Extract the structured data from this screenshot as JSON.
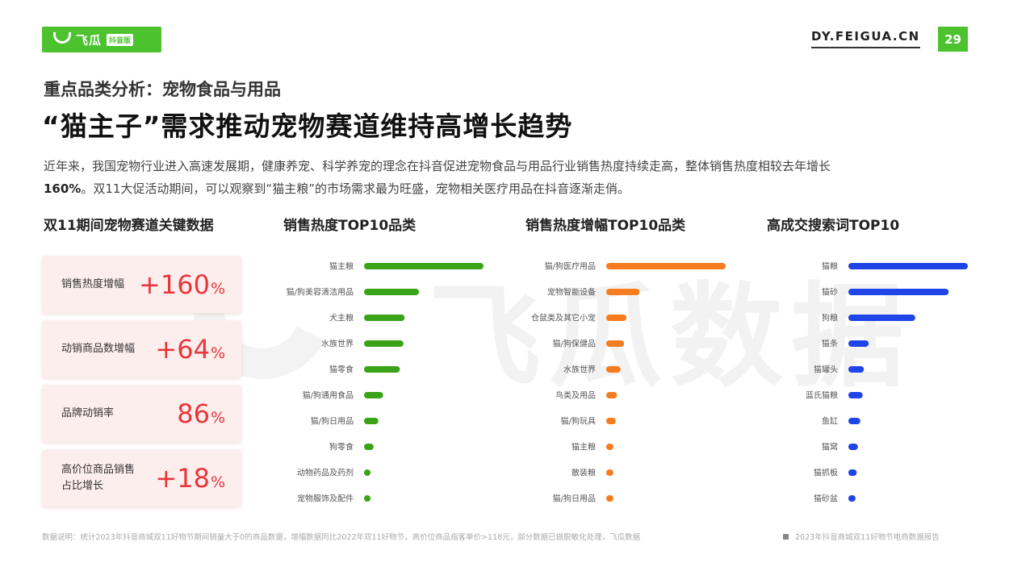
{
  "header": {
    "logo_text": "飞瓜",
    "logo_badge": "抖音版",
    "site_url": "DY.FEIGUA.CN",
    "page_number": "29",
    "brand_color": "#4dc22f"
  },
  "subtitle": "重点品类分析：宠物食品与用品",
  "title": "“猫主子”需求推动宠物赛道维持高增长趋势",
  "description": {
    "line1": "近年来，我国宠物行业进入高速发展期，健康养宠、科学养宠的理念在抖音促进宠物食品与用品行业销售热度持续走高，整体销售热度相较去年增长",
    "line2_bold": "160%",
    "line2_rest": "。双11大促活动期间，可以观察到“猫主粮”的市场需求最为旺盛，宠物相关医疗用品在抖音逐渐走俏。"
  },
  "watermark": "飞瓜数据",
  "kpi_section": {
    "heading": "双11期间宠物赛道关键数据",
    "value_color": "#e8363b",
    "items": [
      {
        "label": "销售热度增幅",
        "value": "+160",
        "unit": "%"
      },
      {
        "label": "动销商品数增幅",
        "value": "+64",
        "unit": "%"
      },
      {
        "label": "品牌动销率",
        "value": "86",
        "unit": "%"
      },
      {
        "label": "高价位商品销售占比增长",
        "value": "+18",
        "unit": "%"
      }
    ]
  },
  "chart_data": [
    {
      "type": "bar",
      "orientation": "horizontal",
      "title": "销售热度TOP10品类",
      "color": "#3aa317",
      "categories": [
        "猫主粮",
        "猫/狗美容清洁用品",
        "犬主粮",
        "水族世界",
        "猫零食",
        "猫/狗通用食品",
        "猫/狗日用品",
        "狗零食",
        "动物药品及药剂",
        "宠物服饰及配件"
      ],
      "values": [
        100,
        46,
        34,
        33,
        30,
        16,
        12,
        8,
        5,
        4
      ]
    },
    {
      "type": "bar",
      "orientation": "horizontal",
      "title": "销售热度增幅TOP10品类",
      "color": "#f57d1f",
      "categories": [
        "猫/狗医疗用品",
        "宠物智能设备",
        "仓鼠类及其它小宠",
        "猫/狗保健品",
        "水族世界",
        "鸟类及用品",
        "猫/狗玩具",
        "猫主粮",
        "散装粮",
        "猫/狗日用品"
      ],
      "values": [
        100,
        28,
        17,
        15,
        12,
        9,
        8,
        6,
        6,
        6
      ]
    },
    {
      "type": "bar",
      "orientation": "horizontal",
      "title": "高成交搜索词TOP10",
      "color": "#1f45e6",
      "categories": [
        "猫粮",
        "猫砂",
        "狗粮",
        "猫条",
        "猫罐头",
        "蓝氏猫粮",
        "鱼缸",
        "猫窝",
        "猫抓板",
        "猫砂盆"
      ],
      "values": [
        100,
        84,
        56,
        17,
        13,
        12,
        10,
        8,
        7,
        6
      ]
    }
  ],
  "footer": {
    "note": "数据说明：统计2023年抖音商城双11好物节期间销量大于0的商品数据，增幅数据同比2022年双11好物节，高价位商品指客单价>118元，部分数据已做脱敏化处理，飞瓜数据",
    "source": "2023年抖音商城双11好物节电商数据报告"
  }
}
